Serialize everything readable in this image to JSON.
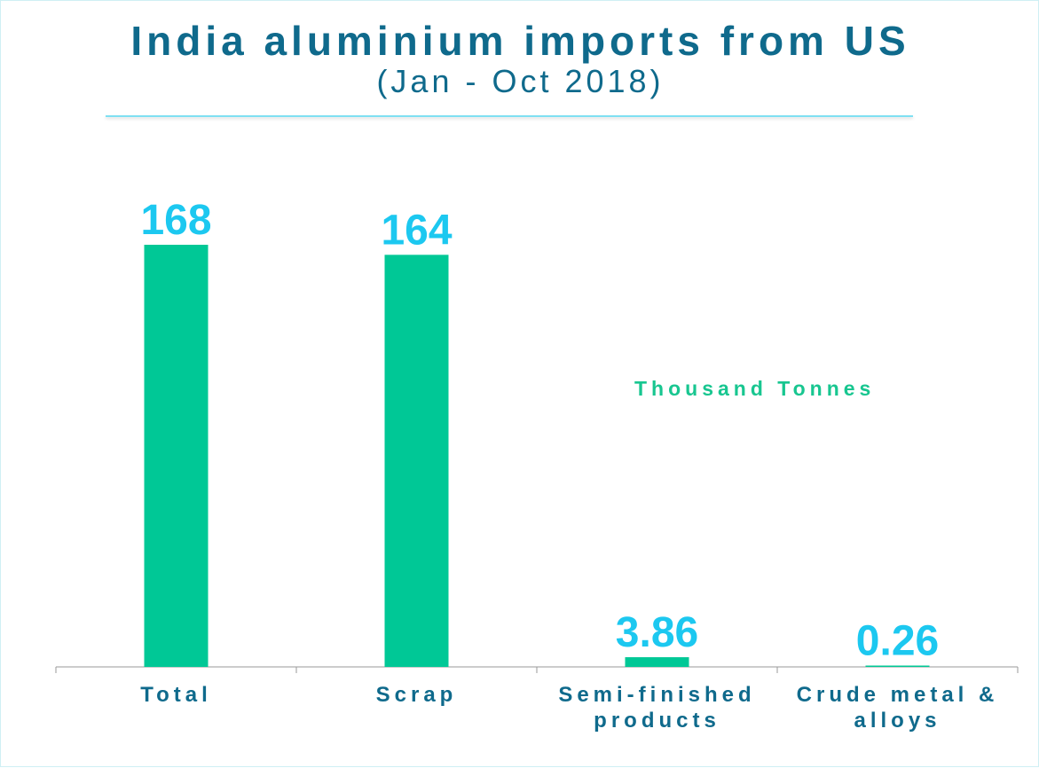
{
  "chart_data": {
    "type": "bar",
    "title": "India aluminium imports from US",
    "subtitle": "(Jan - Oct 2018)",
    "unit_label": "Thousand Tonnes",
    "categories": [
      [
        "Total"
      ],
      [
        "Scrap"
      ],
      [
        "Semi-finished",
        "products"
      ],
      [
        "Crude metal &",
        "alloys"
      ]
    ],
    "values": [
      168,
      164,
      3.86,
      0.26
    ],
    "value_labels": [
      "168",
      "164",
      "3.86",
      "0.26"
    ],
    "ylim": [
      0,
      168
    ],
    "grid": false,
    "legend": "none"
  },
  "colors": {
    "bar": "#00c896",
    "value_label": "#1cc8f0",
    "title": "#0f6a8c",
    "category_label": "#0f6a8c",
    "unit_label": "#18c690",
    "axis": "#9a9a9a",
    "divider": "#7fe0f2"
  }
}
